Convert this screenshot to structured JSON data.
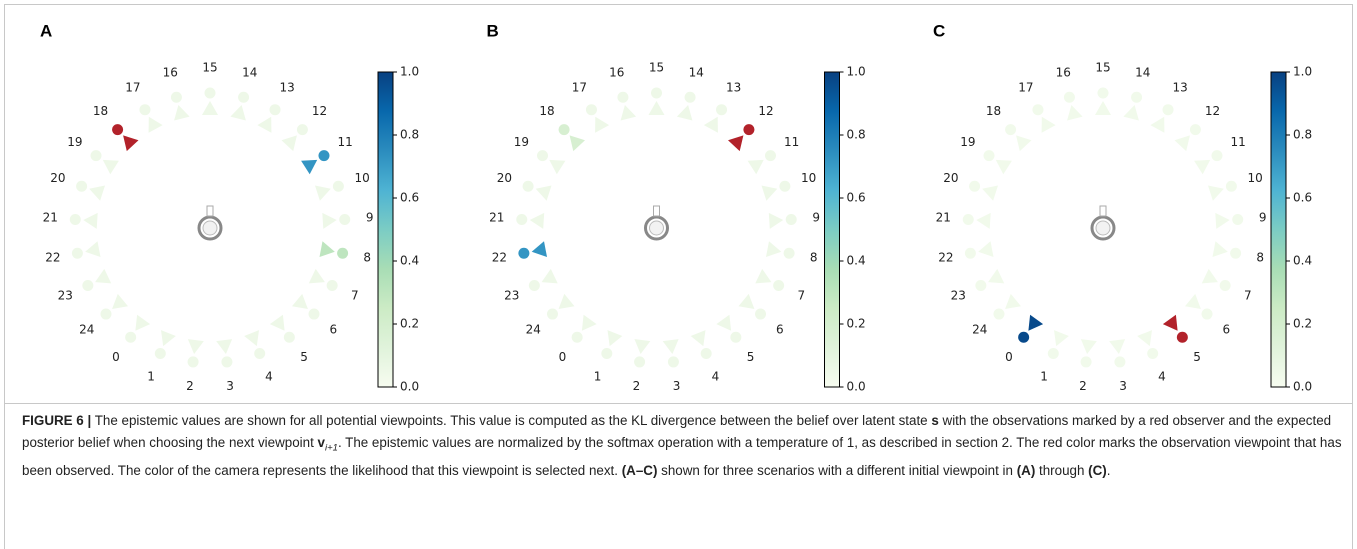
{
  "figure": {
    "colormap": "GnBu",
    "observed_color": "#b2222a",
    "panels": [
      {
        "label": "A",
        "viewpoint_labels": [
          "0",
          "1",
          "2",
          "3",
          "4",
          "5",
          "6",
          "7",
          "8",
          "9",
          "10",
          "11",
          "12",
          "13",
          "14",
          "15",
          "16",
          "17",
          "18",
          "19",
          "20",
          "21",
          "22",
          "23",
          "24"
        ],
        "values": [
          0.05,
          0.05,
          0.05,
          0.05,
          0.05,
          0.05,
          0.05,
          0.05,
          0.3,
          0.05,
          0.05,
          0.72,
          0.05,
          0.05,
          0.05,
          0.05,
          0.05,
          0.05,
          null,
          0.05,
          0.05,
          0.05,
          0.05,
          0.05,
          0.05
        ],
        "observed": 18,
        "colorbar_ticks": [
          {
            "value": 0,
            "label": "0.0"
          },
          {
            "value": 0.2,
            "label": "0.2"
          },
          {
            "value": 0.4,
            "label": "0.4"
          },
          {
            "value": 0.6,
            "label": "0.6"
          },
          {
            "value": 0.8,
            "label": "0.8"
          },
          {
            "value": 1,
            "label": "1.0"
          }
        ]
      },
      {
        "label": "B",
        "viewpoint_labels": [
          "0",
          "1",
          "2",
          "3",
          "4",
          "5",
          "6",
          "7",
          "8",
          "9",
          "10",
          "11",
          "12",
          "13",
          "14",
          "15",
          "16",
          "17",
          "18",
          "19",
          "20",
          "21",
          "22",
          "23",
          "24"
        ],
        "values": [
          0.05,
          0.05,
          0.05,
          0.05,
          0.05,
          0.05,
          0.05,
          0.05,
          0.05,
          0.05,
          0.05,
          0.05,
          null,
          0.05,
          0.05,
          0.05,
          0.05,
          0.05,
          0.18,
          0.05,
          0.05,
          0.05,
          0.72,
          0.05,
          0.05
        ],
        "observed": 12,
        "colorbar_ticks": [
          {
            "value": 0,
            "label": "0.0"
          },
          {
            "value": 0.2,
            "label": "0.2"
          },
          {
            "value": 0.4,
            "label": "0.4"
          },
          {
            "value": 0.6,
            "label": "0.6"
          },
          {
            "value": 0.8,
            "label": "0.8"
          },
          {
            "value": 1,
            "label": "1.0"
          }
        ]
      },
      {
        "label": "C",
        "viewpoint_labels": [
          "0",
          "1",
          "2",
          "3",
          "4",
          "5",
          "6",
          "7",
          "8",
          "9",
          "10",
          "11",
          "12",
          "13",
          "14",
          "15",
          "16",
          "17",
          "18",
          "19",
          "20",
          "21",
          "22",
          "23",
          "24"
        ],
        "values": [
          0.97,
          0.03,
          0.03,
          0.03,
          0.03,
          null,
          0.03,
          0.03,
          0.03,
          0.03,
          0.03,
          0.03,
          0.03,
          0.03,
          0.03,
          0.03,
          0.03,
          0.03,
          0.03,
          0.03,
          0.03,
          0.03,
          0.03,
          0.03,
          0.03
        ],
        "observed": 5,
        "colorbar_ticks": [
          {
            "value": 0,
            "label": "0.0"
          },
          {
            "value": 0.2,
            "label": "0.2"
          },
          {
            "value": 0.4,
            "label": "0.4"
          },
          {
            "value": 0.6,
            "label": "0.6"
          },
          {
            "value": 0.8,
            "label": "0.8"
          },
          {
            "value": 1,
            "label": "1.0"
          }
        ]
      }
    ],
    "caption": [
      {
        "text": "FIGURE 6 |",
        "style": "bold"
      },
      {
        "text": " The epistemic values are shown for all potential viewpoints. This value is computed as the KL divergence between the belief over latent state ",
        "style": "normal"
      },
      {
        "text": "s",
        "style": "bold"
      },
      {
        "text": " with the observations marked by a red observer and the expected posterior belief when choosing the next viewpoint ",
        "style": "normal"
      },
      {
        "text": "v",
        "style": "bold"
      },
      {
        "text": "i+1",
        "style": "sub"
      },
      {
        "text": ". The epistemic values are normalized by the softmax operation with a temperature of 1, as described in section 2. The red color marks the observation viewpoint that has been observed. The color of the camera represents the likelihood that this viewpoint is selected next. ",
        "style": "normal"
      },
      {
        "text": "(A–C)",
        "style": "bold"
      },
      {
        "text": " shown for three scenarios with a different initial viewpoint in ",
        "style": "normal"
      },
      {
        "text": "(A)",
        "style": "bold"
      },
      {
        "text": " through ",
        "style": "normal"
      },
      {
        "text": "(C)",
        "style": "bold"
      },
      {
        "text": ".",
        "style": "normal"
      }
    ]
  }
}
